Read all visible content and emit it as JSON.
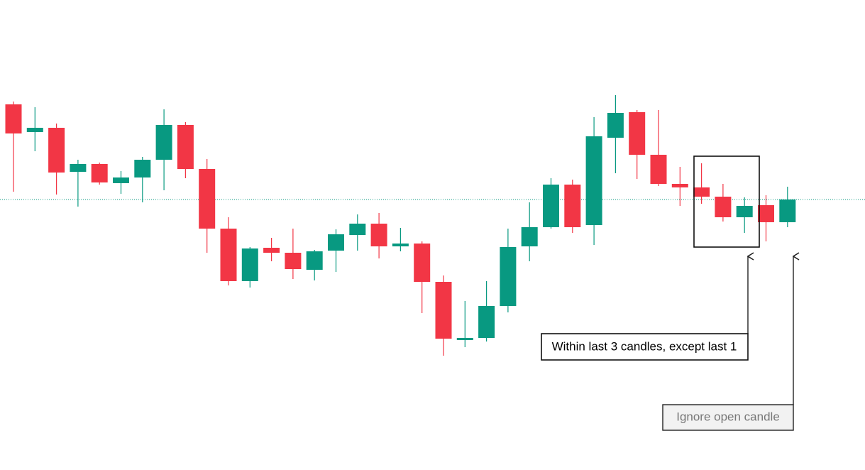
{
  "chart_data": {
    "type": "candlestick",
    "open": [
      515,
      476,
      482,
      420,
      431,
      404,
      412,
      437,
      486,
      424,
      340,
      266,
      313,
      306,
      282,
      309,
      331,
      347,
      315,
      319,
      265,
      183,
      186,
      231,
      315,
      342,
      402,
      345,
      468,
      504,
      444,
      403,
      398,
      385,
      356,
      373,
      349
    ],
    "high": [
      519,
      511,
      488,
      437,
      433,
      421,
      441,
      508,
      490,
      438,
      356,
      314,
      327,
      340,
      310,
      339,
      360,
      362,
      341,
      322,
      274,
      238,
      266,
      340,
      377,
      411,
      409,
      497,
      528,
      507,
      507,
      427,
      432,
      403,
      384,
      387,
      399
    ],
    "low": [
      392,
      449,
      388,
      371,
      402,
      389,
      377,
      394,
      411,
      306,
      260,
      257,
      294,
      269,
      267,
      279,
      309,
      298,
      308,
      221,
      161,
      173,
      181,
      222,
      294,
      340,
      334,
      317,
      418,
      410,
      400,
      372,
      375,
      350,
      334,
      322,
      342
    ],
    "close": [
      474,
      482,
      419,
      431,
      405,
      412,
      437,
      486,
      424,
      340,
      266,
      312,
      306,
      283,
      308,
      332,
      347,
      315,
      319,
      265,
      185,
      186,
      231,
      314,
      342,
      402,
      342,
      470,
      503,
      444,
      403,
      398,
      385,
      356,
      372,
      349,
      381
    ],
    "up_color": "#089981",
    "down_color": "#f23645",
    "ylim": [
      0,
      662
    ],
    "annotations": [
      "Within last 3 candles, except last 1",
      "Ignore open candle"
    ]
  }
}
